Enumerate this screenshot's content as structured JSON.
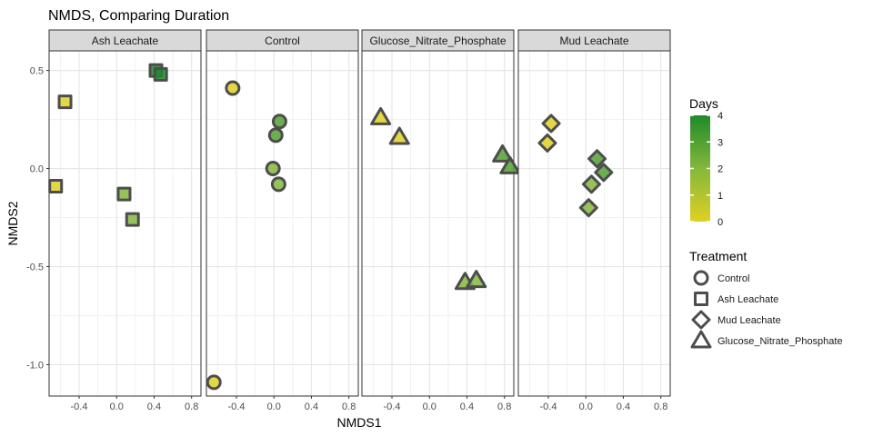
{
  "chart_data": {
    "type": "scatter",
    "title": "NMDS, Comparing Duration",
    "xlabel": "NMDS1",
    "ylabel": "NMDS2",
    "xlim": [
      -0.72,
      0.9
    ],
    "ylim": [
      -1.16,
      0.6
    ],
    "x_ticks": [
      -0.4,
      0.0,
      0.4,
      0.8
    ],
    "x_tick_labels": [
      "-0.4",
      "0.0",
      "0.4",
      "0.8"
    ],
    "y_ticks": [
      0.5,
      0.0,
      -0.5,
      -1.0
    ],
    "y_tick_labels": [
      "0.5",
      "0.0",
      "-0.5",
      "-1.0"
    ],
    "grid": true,
    "legend_position": "right",
    "color_legend": {
      "title": "Days",
      "min": 0,
      "max": 4,
      "breaks": [
        4,
        3,
        2,
        1,
        0
      ],
      "break_labels": [
        "4",
        "3",
        "2",
        "1",
        "0"
      ],
      "low_color": "#e0d022",
      "high_color": "#1f8a2a"
    },
    "shape_legend": {
      "title": "Treatment",
      "items": [
        {
          "label": "Control",
          "shape": "circle"
        },
        {
          "label": "Ash Leachate",
          "shape": "square"
        },
        {
          "label": "Mud Leachate",
          "shape": "diamond"
        },
        {
          "label": "Glucose_Nitrate_Phosphate",
          "shape": "triangle"
        }
      ]
    },
    "panels": [
      {
        "label": "Ash Leachate",
        "shape": "square",
        "points": [
          {
            "x": 0.42,
            "y": 0.5,
            "days": 4
          },
          {
            "x": 0.47,
            "y": 0.48,
            "days": 4
          },
          {
            "x": -0.55,
            "y": 0.34,
            "days": 0
          },
          {
            "x": -0.65,
            "y": -0.09,
            "days": 0
          },
          {
            "x": 0.08,
            "y": -0.13,
            "days": 2
          },
          {
            "x": 0.17,
            "y": -0.26,
            "days": 2
          }
        ]
      },
      {
        "label": "Control",
        "shape": "circle",
        "points": [
          {
            "x": -0.44,
            "y": 0.41,
            "days": 0
          },
          {
            "x": 0.06,
            "y": 0.24,
            "days": 3
          },
          {
            "x": 0.02,
            "y": 0.17,
            "days": 3
          },
          {
            "x": -0.01,
            "y": 0.0,
            "days": 2
          },
          {
            "x": 0.05,
            "y": -0.08,
            "days": 2
          },
          {
            "x": -0.64,
            "y": -1.09,
            "days": 0
          }
        ]
      },
      {
        "label": "Glucose_Nitrate_Phosphate",
        "shape": "triangle",
        "points": [
          {
            "x": -0.52,
            "y": 0.26,
            "days": 0
          },
          {
            "x": -0.32,
            "y": 0.16,
            "days": 0
          },
          {
            "x": 0.78,
            "y": 0.07,
            "days": 3
          },
          {
            "x": 0.86,
            "y": 0.01,
            "days": 3
          },
          {
            "x": 0.38,
            "y": -0.58,
            "days": 2
          },
          {
            "x": 0.5,
            "y": -0.57,
            "days": 2
          }
        ]
      },
      {
        "label": "Mud Leachate",
        "shape": "diamond",
        "points": [
          {
            "x": -0.37,
            "y": 0.23,
            "days": 0
          },
          {
            "x": -0.41,
            "y": 0.13,
            "days": 0
          },
          {
            "x": 0.12,
            "y": 0.05,
            "days": 3
          },
          {
            "x": 0.19,
            "y": -0.02,
            "days": 3
          },
          {
            "x": 0.06,
            "y": -0.08,
            "days": 2
          },
          {
            "x": 0.03,
            "y": -0.2,
            "days": 2
          }
        ]
      }
    ]
  }
}
